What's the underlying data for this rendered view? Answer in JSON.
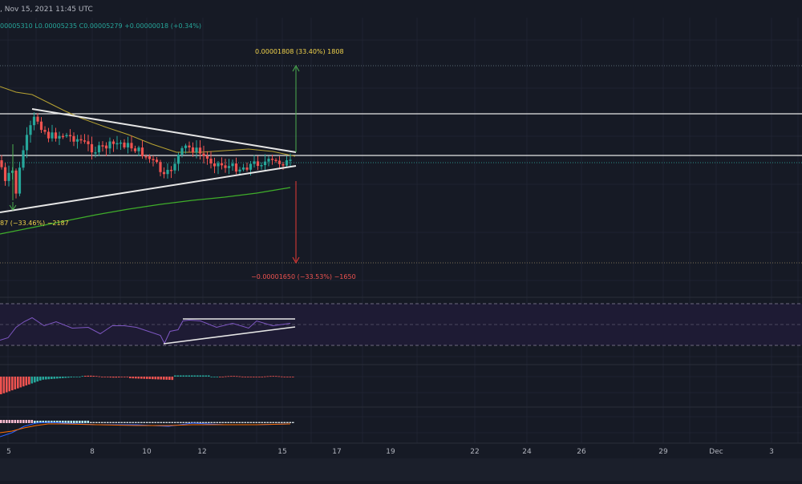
{
  "header": {
    "datetime": ", Nov 15, 2021 11:45 UTC",
    "ohlc": "00005310  L0.00005235  C0.00005279  +0.00000018 (+0.34%)"
  },
  "annotations": {
    "upper_measure": "0.00001808 (33.40%) 1808",
    "lower_measure": "−0.00001650 (−33.53%) −1650",
    "left_measure": "87 (−33.46%) −2187"
  },
  "colors": {
    "background": "#161a25",
    "bull": "#26a69a",
    "bear": "#ef5350",
    "ma_yellow": "#b7a232",
    "ma_green": "#3fae2a",
    "rsi_line": "#7e57c2",
    "up_arrow": "#4caf50",
    "down_arrow": "#e53935",
    "axis_text": "#b2b5be"
  },
  "chart_data": {
    "type": "candlestick",
    "x_axis_labels": [
      "5",
      "8",
      "10",
      "12",
      "15",
      "17",
      "19",
      "22",
      "24",
      "26",
      "29",
      "Dec",
      "3"
    ],
    "y_axis": "not visible",
    "panels": [
      "price",
      "rsi",
      "macd_histogram",
      "macd_lines"
    ],
    "indicators": [
      "moving_average_yellow",
      "moving_average_green",
      "rsi",
      "macd"
    ],
    "patterns": [
      "symmetrical triangle on price",
      "ascending triangle on RSI"
    ],
    "grid": true,
    "legend": "none"
  }
}
